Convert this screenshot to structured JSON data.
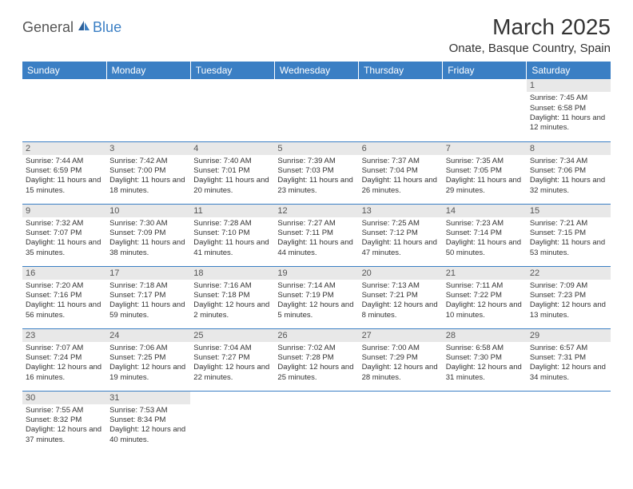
{
  "logo": {
    "general": "General",
    "blue": "Blue"
  },
  "title": "March 2025",
  "location": "Onate, Basque Country, Spain",
  "colors": {
    "header_bg": "#3b7fc4",
    "header_text": "#ffffff",
    "day_strip": "#e8e8e8",
    "border": "#3b7fc4"
  },
  "days_of_week": [
    "Sunday",
    "Monday",
    "Tuesday",
    "Wednesday",
    "Thursday",
    "Friday",
    "Saturday"
  ],
  "weeks": [
    [
      null,
      null,
      null,
      null,
      null,
      null,
      {
        "n": "1",
        "sr": "Sunrise: 7:45 AM",
        "ss": "Sunset: 6:58 PM",
        "dl": "Daylight: 11 hours and 12 minutes."
      }
    ],
    [
      {
        "n": "2",
        "sr": "Sunrise: 7:44 AM",
        "ss": "Sunset: 6:59 PM",
        "dl": "Daylight: 11 hours and 15 minutes."
      },
      {
        "n": "3",
        "sr": "Sunrise: 7:42 AM",
        "ss": "Sunset: 7:00 PM",
        "dl": "Daylight: 11 hours and 18 minutes."
      },
      {
        "n": "4",
        "sr": "Sunrise: 7:40 AM",
        "ss": "Sunset: 7:01 PM",
        "dl": "Daylight: 11 hours and 20 minutes."
      },
      {
        "n": "5",
        "sr": "Sunrise: 7:39 AM",
        "ss": "Sunset: 7:03 PM",
        "dl": "Daylight: 11 hours and 23 minutes."
      },
      {
        "n": "6",
        "sr": "Sunrise: 7:37 AM",
        "ss": "Sunset: 7:04 PM",
        "dl": "Daylight: 11 hours and 26 minutes."
      },
      {
        "n": "7",
        "sr": "Sunrise: 7:35 AM",
        "ss": "Sunset: 7:05 PM",
        "dl": "Daylight: 11 hours and 29 minutes."
      },
      {
        "n": "8",
        "sr": "Sunrise: 7:34 AM",
        "ss": "Sunset: 7:06 PM",
        "dl": "Daylight: 11 hours and 32 minutes."
      }
    ],
    [
      {
        "n": "9",
        "sr": "Sunrise: 7:32 AM",
        "ss": "Sunset: 7:07 PM",
        "dl": "Daylight: 11 hours and 35 minutes."
      },
      {
        "n": "10",
        "sr": "Sunrise: 7:30 AM",
        "ss": "Sunset: 7:09 PM",
        "dl": "Daylight: 11 hours and 38 minutes."
      },
      {
        "n": "11",
        "sr": "Sunrise: 7:28 AM",
        "ss": "Sunset: 7:10 PM",
        "dl": "Daylight: 11 hours and 41 minutes."
      },
      {
        "n": "12",
        "sr": "Sunrise: 7:27 AM",
        "ss": "Sunset: 7:11 PM",
        "dl": "Daylight: 11 hours and 44 minutes."
      },
      {
        "n": "13",
        "sr": "Sunrise: 7:25 AM",
        "ss": "Sunset: 7:12 PM",
        "dl": "Daylight: 11 hours and 47 minutes."
      },
      {
        "n": "14",
        "sr": "Sunrise: 7:23 AM",
        "ss": "Sunset: 7:14 PM",
        "dl": "Daylight: 11 hours and 50 minutes."
      },
      {
        "n": "15",
        "sr": "Sunrise: 7:21 AM",
        "ss": "Sunset: 7:15 PM",
        "dl": "Daylight: 11 hours and 53 minutes."
      }
    ],
    [
      {
        "n": "16",
        "sr": "Sunrise: 7:20 AM",
        "ss": "Sunset: 7:16 PM",
        "dl": "Daylight: 11 hours and 56 minutes."
      },
      {
        "n": "17",
        "sr": "Sunrise: 7:18 AM",
        "ss": "Sunset: 7:17 PM",
        "dl": "Daylight: 11 hours and 59 minutes."
      },
      {
        "n": "18",
        "sr": "Sunrise: 7:16 AM",
        "ss": "Sunset: 7:18 PM",
        "dl": "Daylight: 12 hours and 2 minutes."
      },
      {
        "n": "19",
        "sr": "Sunrise: 7:14 AM",
        "ss": "Sunset: 7:19 PM",
        "dl": "Daylight: 12 hours and 5 minutes."
      },
      {
        "n": "20",
        "sr": "Sunrise: 7:13 AM",
        "ss": "Sunset: 7:21 PM",
        "dl": "Daylight: 12 hours and 8 minutes."
      },
      {
        "n": "21",
        "sr": "Sunrise: 7:11 AM",
        "ss": "Sunset: 7:22 PM",
        "dl": "Daylight: 12 hours and 10 minutes."
      },
      {
        "n": "22",
        "sr": "Sunrise: 7:09 AM",
        "ss": "Sunset: 7:23 PM",
        "dl": "Daylight: 12 hours and 13 minutes."
      }
    ],
    [
      {
        "n": "23",
        "sr": "Sunrise: 7:07 AM",
        "ss": "Sunset: 7:24 PM",
        "dl": "Daylight: 12 hours and 16 minutes."
      },
      {
        "n": "24",
        "sr": "Sunrise: 7:06 AM",
        "ss": "Sunset: 7:25 PM",
        "dl": "Daylight: 12 hours and 19 minutes."
      },
      {
        "n": "25",
        "sr": "Sunrise: 7:04 AM",
        "ss": "Sunset: 7:27 PM",
        "dl": "Daylight: 12 hours and 22 minutes."
      },
      {
        "n": "26",
        "sr": "Sunrise: 7:02 AM",
        "ss": "Sunset: 7:28 PM",
        "dl": "Daylight: 12 hours and 25 minutes."
      },
      {
        "n": "27",
        "sr": "Sunrise: 7:00 AM",
        "ss": "Sunset: 7:29 PM",
        "dl": "Daylight: 12 hours and 28 minutes."
      },
      {
        "n": "28",
        "sr": "Sunrise: 6:58 AM",
        "ss": "Sunset: 7:30 PM",
        "dl": "Daylight: 12 hours and 31 minutes."
      },
      {
        "n": "29",
        "sr": "Sunrise: 6:57 AM",
        "ss": "Sunset: 7:31 PM",
        "dl": "Daylight: 12 hours and 34 minutes."
      }
    ],
    [
      {
        "n": "30",
        "sr": "Sunrise: 7:55 AM",
        "ss": "Sunset: 8:32 PM",
        "dl": "Daylight: 12 hours and 37 minutes."
      },
      {
        "n": "31",
        "sr": "Sunrise: 7:53 AM",
        "ss": "Sunset: 8:34 PM",
        "dl": "Daylight: 12 hours and 40 minutes."
      },
      null,
      null,
      null,
      null,
      null
    ]
  ]
}
